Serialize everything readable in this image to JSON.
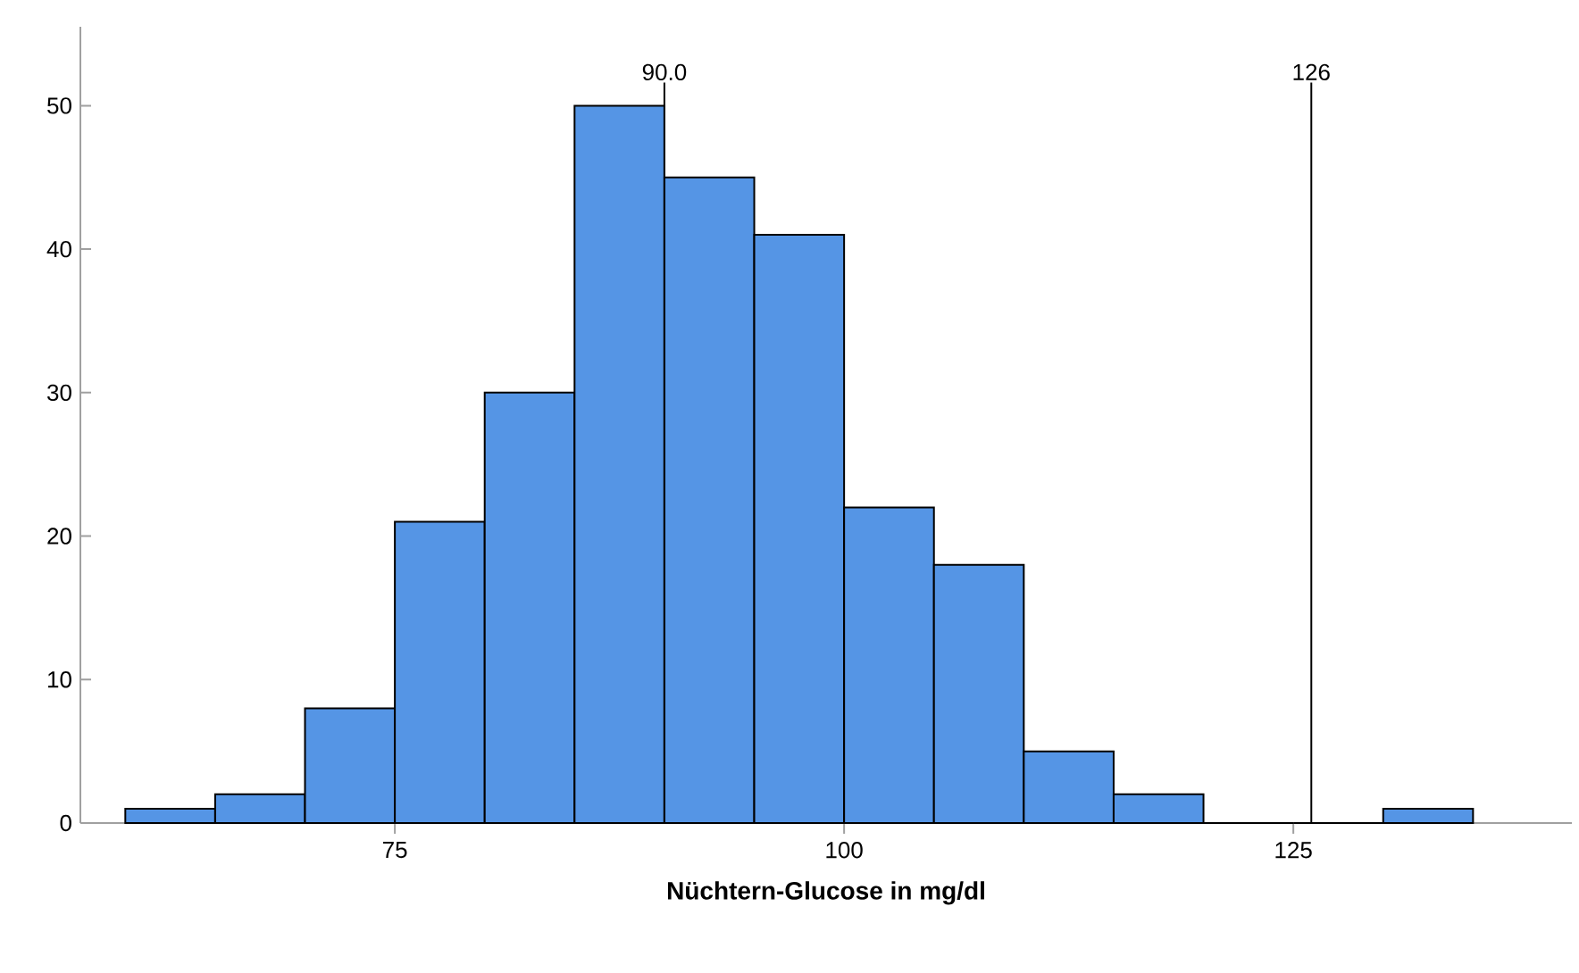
{
  "chart_data": {
    "type": "histogram",
    "xlabel": "Nüchtern-Glucose in mg/dl",
    "bins": [
      60,
      65,
      70,
      75,
      80,
      85,
      90,
      95,
      100,
      105,
      110,
      115,
      120,
      125,
      130,
      135
    ],
    "values": [
      1,
      2,
      8,
      21,
      30,
      50,
      45,
      41,
      22,
      18,
      5,
      2,
      0,
      0,
      1
    ],
    "color": "#5595e5",
    "xlim": [
      57.5,
      140.5
    ],
    "ylim": [
      0,
      55.5
    ],
    "xticks": [
      75,
      100,
      125
    ],
    "yticks": [
      0,
      10,
      20,
      30,
      40,
      50
    ],
    "ref_lines": [
      {
        "axis": "x",
        "value": 90,
        "label": "90.0"
      },
      {
        "axis": "x",
        "value": 126,
        "label": "126"
      }
    ]
  }
}
